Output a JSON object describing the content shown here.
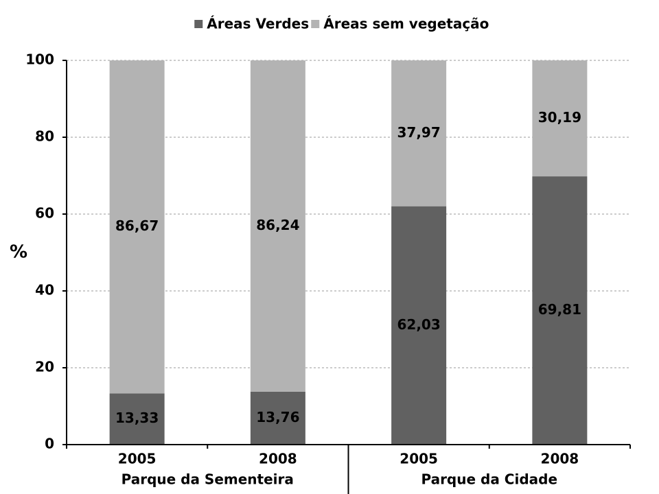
{
  "chart_data": {
    "type": "bar",
    "stacked": true,
    "ylabel": "%",
    "categories": [
      "2005",
      "2008",
      "2005",
      "2008"
    ],
    "groups": [
      "Parque da Sementeira",
      "Parque da Cidade"
    ],
    "series": [
      {
        "name": "Áreas Verdes",
        "color": "#616161",
        "values": [
          13.33,
          13.76,
          62.03,
          69.81
        ],
        "value_labels": [
          "13,33",
          "13,76",
          "62,03",
          "69,81"
        ]
      },
      {
        "name": "Áreas sem vegetação",
        "color": "#b3b3b3",
        "values": [
          86.67,
          86.24,
          37.97,
          30.19
        ],
        "value_labels": [
          "86,67",
          "86,24",
          "37,97",
          "30,19"
        ]
      }
    ],
    "ylim": [
      0,
      100
    ],
    "yticks": [
      0,
      20,
      40,
      60,
      80,
      100
    ],
    "grid": true,
    "legend": "top"
  }
}
